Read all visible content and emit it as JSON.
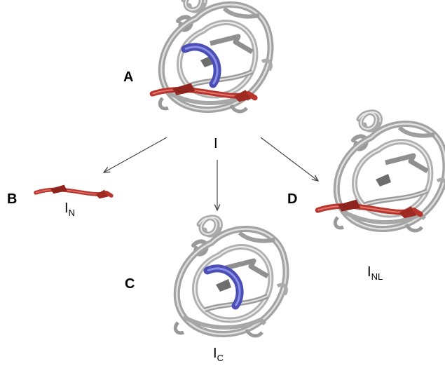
{
  "panels": {
    "a": {
      "letter": "A",
      "label": "I",
      "label_sub": ""
    },
    "b": {
      "letter": "B",
      "label": "I",
      "label_sub": "N"
    },
    "c": {
      "letter": "C",
      "label": "I",
      "label_sub": "C"
    },
    "d": {
      "letter": "D",
      "label": "I",
      "label_sub": "NL"
    }
  },
  "colors": {
    "protein_gray": "#a9a9a9",
    "protein_light": "#dcdcdc",
    "n_terminal_red": "#b8342c",
    "c_terminal_blue": "#4b4fb5",
    "arrow": "#444444",
    "text": "#000000"
  },
  "icons": {
    "structure": "protein-ribbon-structure",
    "arrow": "arrow-right-icon"
  }
}
